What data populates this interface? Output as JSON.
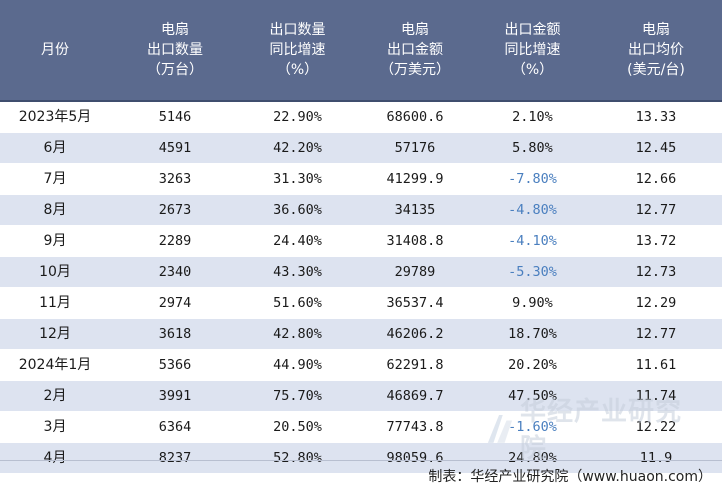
{
  "headers": [
    [
      "月份"
    ],
    [
      "电扇",
      "出口数量",
      "（万台）"
    ],
    [
      "出口数量",
      "同比增速",
      "（%）"
    ],
    [
      "电扇",
      "出口金额",
      "（万美元）"
    ],
    [
      "出口金额",
      "同比增速",
      "（%）"
    ],
    [
      "电扇",
      "出口均价",
      "(美元/台)"
    ]
  ],
  "rows": [
    {
      "month": "2023年5月",
      "qty": "5146",
      "qty_yoy": "22.90%",
      "amt": "68600.6",
      "amt_yoy": "2.10%",
      "price": "13.33",
      "amt_yoy_negative": false
    },
    {
      "month": "6月",
      "qty": "4591",
      "qty_yoy": "42.20%",
      "amt": "57176",
      "amt_yoy": "5.80%",
      "price": "12.45",
      "amt_yoy_negative": false
    },
    {
      "month": "7月",
      "qty": "3263",
      "qty_yoy": "31.30%",
      "amt": "41299.9",
      "amt_yoy": "-7.80%",
      "price": "12.66",
      "amt_yoy_negative": true
    },
    {
      "month": "8月",
      "qty": "2673",
      "qty_yoy": "36.60%",
      "amt": "34135",
      "amt_yoy": "-4.80%",
      "price": "12.77",
      "amt_yoy_negative": true
    },
    {
      "month": "9月",
      "qty": "2289",
      "qty_yoy": "24.40%",
      "amt": "31408.8",
      "amt_yoy": "-4.10%",
      "price": "13.72",
      "amt_yoy_negative": true
    },
    {
      "month": "10月",
      "qty": "2340",
      "qty_yoy": "43.30%",
      "amt": "29789",
      "amt_yoy": "-5.30%",
      "price": "12.73",
      "amt_yoy_negative": true
    },
    {
      "month": "11月",
      "qty": "2974",
      "qty_yoy": "51.60%",
      "amt": "36537.4",
      "amt_yoy": "9.90%",
      "price": "12.29",
      "amt_yoy_negative": false
    },
    {
      "month": "12月",
      "qty": "3618",
      "qty_yoy": "42.80%",
      "amt": "46206.2",
      "amt_yoy": "18.70%",
      "price": "12.77",
      "amt_yoy_negative": false
    },
    {
      "month": "2024年1月",
      "qty": "5366",
      "qty_yoy": "44.90%",
      "amt": "62291.8",
      "amt_yoy": "20.20%",
      "price": "11.61",
      "amt_yoy_negative": false
    },
    {
      "month": "2月",
      "qty": "3991",
      "qty_yoy": "75.70%",
      "amt": "46869.7",
      "amt_yoy": "47.50%",
      "price": "11.74",
      "amt_yoy_negative": false
    },
    {
      "month": "3月",
      "qty": "6364",
      "qty_yoy": "20.50%",
      "amt": "77743.8",
      "amt_yoy": "-1.60%",
      "price": "12.22",
      "amt_yoy_negative": true
    },
    {
      "month": "4月",
      "qty": "8237",
      "qty_yoy": "52.80%",
      "amt": "98059.6",
      "amt_yoy": "24.80%",
      "price": "11.9",
      "amt_yoy_negative": false
    }
  ],
  "footer": "制表：华经产业研究院（www.huaon.com）",
  "watermark": "华经产业研究院",
  "colors": {
    "header_bg": "#5b6a8e",
    "row_even_bg": "#dde3f0",
    "negative_text": "#4a7fbf"
  }
}
